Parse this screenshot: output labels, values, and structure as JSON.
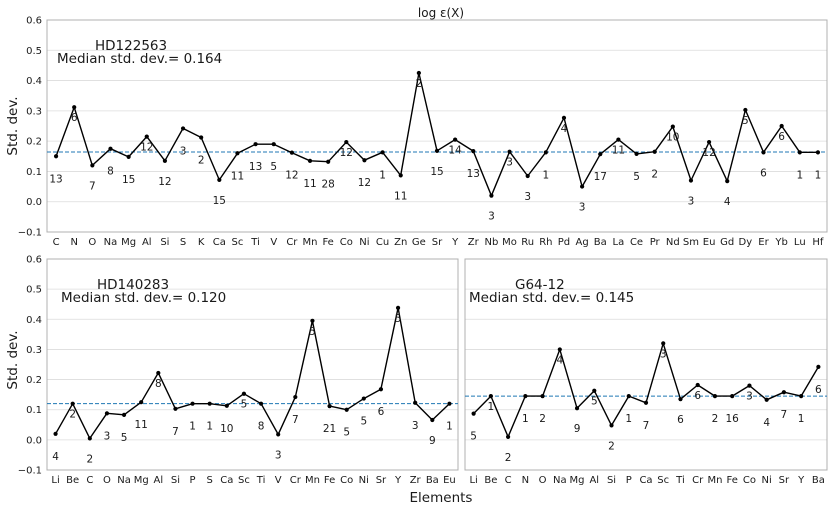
{
  "figure": {
    "title": "log ε(X)",
    "xlabel": "Elements",
    "ylabel": "Std. dev."
  },
  "chart_data": [
    {
      "type": "line",
      "star": "HD122563",
      "median_label": "Median std. dev.= 0.164",
      "median": 0.164,
      "ylabel": "Std. dev.",
      "ylim": [
        -0.1,
        0.6
      ],
      "yticks": [
        "−0.1",
        "0.0",
        "0.1",
        "0.2",
        "0.3",
        "0.4",
        "0.5",
        "0.6"
      ],
      "categories": [
        "C",
        "N",
        "O",
        "Na",
        "Mg",
        "Al",
        "Si",
        "S",
        "K",
        "Ca",
        "Sc",
        "Ti",
        "V",
        "Cr",
        "Mn",
        "Fe",
        "Co",
        "Ni",
        "Cu",
        "Zn",
        "Ge",
        "Sr",
        "Y",
        "Zr",
        "Nb",
        "Mo",
        "Ru",
        "Rh",
        "Pd",
        "Ag",
        "Ba",
        "La",
        "Ce",
        "Pr",
        "Nd",
        "Sm",
        "Eu",
        "Gd",
        "Dy",
        "Er",
        "Yb",
        "Lu",
        "Hf"
      ],
      "values": [
        0.15,
        0.312,
        0.12,
        0.175,
        0.148,
        0.215,
        0.135,
        0.242,
        0.212,
        0.072,
        0.16,
        0.19,
        0.19,
        0.162,
        0.135,
        0.132,
        0.197,
        0.137,
        0.163,
        0.087,
        0.425,
        0.168,
        0.205,
        0.167,
        0.02,
        0.165,
        0.085,
        0.163,
        0.277,
        0.05,
        0.157,
        0.205,
        0.158,
        0.165,
        0.248,
        0.07,
        0.197,
        0.068,
        0.303,
        0.163,
        0.25,
        0.163,
        0.163
      ],
      "counts": [
        "13",
        "6",
        "7",
        "8",
        "15",
        "12",
        "12",
        "3",
        "2",
        "15",
        "11",
        "13",
        "5",
        "12",
        "11",
        "28",
        "12",
        "12",
        "1",
        "11",
        "2",
        "15",
        "14",
        "13",
        "3",
        "3",
        "3",
        "1",
        "4",
        "3",
        "17",
        "11",
        "5",
        "2",
        "10",
        "3",
        "12",
        "4",
        "5",
        "6",
        "6",
        "1",
        "1"
      ]
    },
    {
      "type": "line",
      "star": "HD140283",
      "median_label": "Median std. dev.= 0.120",
      "median": 0.12,
      "ylabel": "Std. dev.",
      "ylim": [
        -0.1,
        0.6
      ],
      "yticks": [
        "−0.1",
        "0.0",
        "0.1",
        "0.2",
        "0.3",
        "0.4",
        "0.5",
        "0.6"
      ],
      "categories": [
        "Li",
        "Be",
        "C",
        "O",
        "Na",
        "Mg",
        "Al",
        "Si",
        "P",
        "S",
        "Ca",
        "Sc",
        "Ti",
        "V",
        "Cr",
        "Mn",
        "Fe",
        "Co",
        "Ni",
        "Sr",
        "Y",
        "Zr",
        "Ba",
        "Eu"
      ],
      "values": [
        0.02,
        0.12,
        0.005,
        0.088,
        0.083,
        0.125,
        0.222,
        0.103,
        0.12,
        0.12,
        0.113,
        0.153,
        0.12,
        0.018,
        0.142,
        0.395,
        0.112,
        0.1,
        0.137,
        0.168,
        0.438,
        0.123,
        0.066,
        0.12
      ],
      "counts": [
        "4",
        "2",
        "2",
        "3",
        "5",
        "11",
        "8",
        "7",
        "1",
        "1",
        "10",
        "5",
        "8",
        "3",
        "7",
        "5",
        "21",
        "5",
        "5",
        "6",
        "5",
        "3",
        "9",
        "1"
      ]
    },
    {
      "type": "line",
      "star": "G64-12",
      "median_label": "Median std. dev.= 0.145",
      "median": 0.145,
      "ylim": [
        -0.1,
        0.6
      ],
      "categories": [
        "Li",
        "Be",
        "C",
        "N",
        "O",
        "Na",
        "Mg",
        "Al",
        "Si",
        "P",
        "Ca",
        "Sc",
        "Ti",
        "Cr",
        "Mn",
        "Fe",
        "Co",
        "Ni",
        "Sr",
        "Y",
        "Ba"
      ],
      "values": [
        0.087,
        0.145,
        0.01,
        0.145,
        0.145,
        0.3,
        0.105,
        0.163,
        0.048,
        0.145,
        0.123,
        0.32,
        0.135,
        0.182,
        0.145,
        0.145,
        0.18,
        0.133,
        0.158,
        0.145,
        0.242
      ],
      "counts": [
        "5",
        "1",
        "2",
        "1",
        "2",
        "4",
        "9",
        "5",
        "2",
        "1",
        "7",
        "3",
        "6",
        "6",
        "2",
        "16",
        "3",
        "4",
        "7",
        "1",
        "6"
      ]
    }
  ]
}
